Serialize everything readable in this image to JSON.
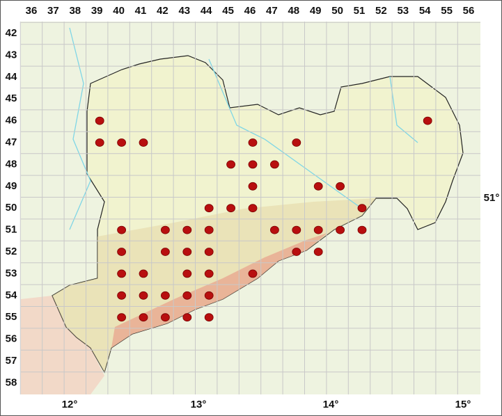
{
  "columns": [
    "36",
    "37",
    "38",
    "39",
    "40",
    "41",
    "42",
    "43",
    "44",
    "45",
    "46",
    "47",
    "48",
    "49",
    "50",
    "51",
    "52",
    "53",
    "54",
    "55",
    "56"
  ],
  "rows": [
    "42",
    "43",
    "44",
    "45",
    "46",
    "47",
    "48",
    "49",
    "50",
    "51",
    "52",
    "53",
    "54",
    "55",
    "56",
    "57",
    "58"
  ],
  "longitudes": [
    "12°",
    "13°",
    "14°",
    "15°"
  ],
  "latitude": "51°",
  "occurrences": [
    {
      "col": 39,
      "row": 46
    },
    {
      "col": 54,
      "row": 46
    },
    {
      "col": 39,
      "row": 47
    },
    {
      "col": 40,
      "row": 47
    },
    {
      "col": 41,
      "row": 47
    },
    {
      "col": 46,
      "row": 47
    },
    {
      "col": 48,
      "row": 47
    },
    {
      "col": 45,
      "row": 48
    },
    {
      "col": 46,
      "row": 48
    },
    {
      "col": 47,
      "row": 48
    },
    {
      "col": 46,
      "row": 49
    },
    {
      "col": 49,
      "row": 49
    },
    {
      "col": 50,
      "row": 49
    },
    {
      "col": 44,
      "row": 50
    },
    {
      "col": 45,
      "row": 50
    },
    {
      "col": 46,
      "row": 50
    },
    {
      "col": 51,
      "row": 50
    },
    {
      "col": 40,
      "row": 51
    },
    {
      "col": 42,
      "row": 51
    },
    {
      "col": 43,
      "row": 51
    },
    {
      "col": 44,
      "row": 51
    },
    {
      "col": 47,
      "row": 51
    },
    {
      "col": 48,
      "row": 51
    },
    {
      "col": 49,
      "row": 51
    },
    {
      "col": 50,
      "row": 51
    },
    {
      "col": 51,
      "row": 51
    },
    {
      "col": 40,
      "row": 52
    },
    {
      "col": 42,
      "row": 52
    },
    {
      "col": 43,
      "row": 52
    },
    {
      "col": 44,
      "row": 52
    },
    {
      "col": 48,
      "row": 52
    },
    {
      "col": 49,
      "row": 52
    },
    {
      "col": 40,
      "row": 53
    },
    {
      "col": 41,
      "row": 53
    },
    {
      "col": 43,
      "row": 53
    },
    {
      "col": 44,
      "row": 53
    },
    {
      "col": 46,
      "row": 53
    },
    {
      "col": 40,
      "row": 54
    },
    {
      "col": 41,
      "row": 54
    },
    {
      "col": 42,
      "row": 54
    },
    {
      "col": 43,
      "row": 54
    },
    {
      "col": 44,
      "row": 54
    },
    {
      "col": 40,
      "row": 55
    },
    {
      "col": 41,
      "row": 55
    },
    {
      "col": 42,
      "row": 55
    },
    {
      "col": 43,
      "row": 55
    },
    {
      "col": 44,
      "row": 55
    }
  ]
}
